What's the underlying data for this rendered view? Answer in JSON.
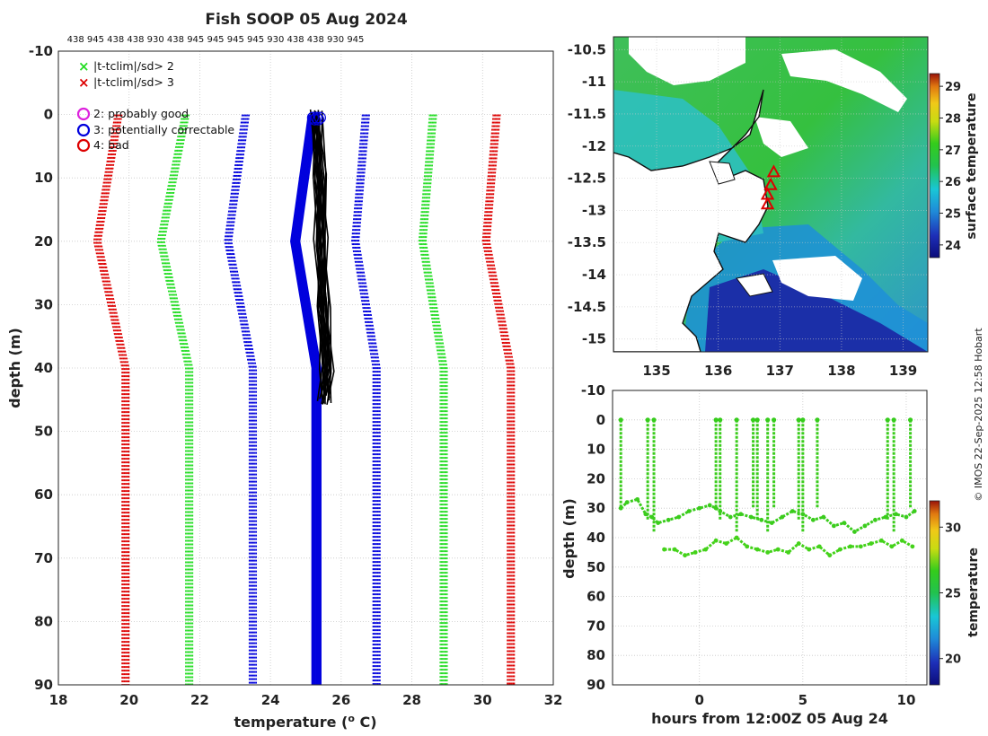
{
  "figure": {
    "title": "Fish SOOP 05 Aug 2024",
    "probe_types": "438 945 438 438 930 438 945 945 945 945 930 438 438 930 945",
    "credit": "© IMOS 22-Sep-2025 12:58 Hobart"
  },
  "legend": {
    "items": [
      {
        "symbol": "×",
        "color": "#22dd22",
        "label": "|t-tclim|/sd> 2"
      },
      {
        "symbol": "×",
        "color": "#dd0000",
        "label": "|t-tclim|/sd> 3"
      },
      {
        "symbol": "○",
        "color": "#dd22dd",
        "label": "2: probably good"
      },
      {
        "symbol": "○",
        "color": "#0000dd",
        "label": "3: potentially correctable"
      },
      {
        "symbol": "○",
        "color": "#dd0000",
        "label": "4: bad"
      }
    ]
  },
  "chart_data": [
    {
      "type": "line",
      "name": "temperature-profiles",
      "title": "Fish SOOP 05 Aug 2024",
      "xlabel": "temperature (°C)",
      "ylabel": "depth (m)",
      "xlim": [
        18,
        32
      ],
      "ylim": [
        90,
        -10
      ],
      "xticks": [
        "18",
        "20",
        "22",
        "24",
        "26",
        "28",
        "30",
        "32"
      ],
      "yticks": [
        "-10",
        "0",
        "10",
        "20",
        "30",
        "40",
        "50",
        "60",
        "70",
        "80",
        "90"
      ],
      "climatology_depths": [
        0,
        20,
        40,
        80,
        90
      ],
      "climatology_series": [
        {
          "name": "clim-minus-3sd",
          "color": "#dd0000",
          "values": [
            19.7,
            19.1,
            19.9,
            19.9,
            19.9
          ]
        },
        {
          "name": "clim-minus-2sd",
          "color": "#22dd22",
          "values": [
            21.6,
            20.9,
            21.7,
            21.7,
            21.7
          ]
        },
        {
          "name": "clim-minus-1sd",
          "color": "#0000dd",
          "values": [
            23.3,
            22.8,
            23.5,
            23.5,
            23.5
          ]
        },
        {
          "name": "clim-plus-1sd",
          "color": "#0000dd",
          "values": [
            26.7,
            26.4,
            27.0,
            27.0,
            27.0
          ]
        },
        {
          "name": "clim-plus-2sd",
          "color": "#22dd22",
          "values": [
            28.6,
            28.3,
            28.9,
            28.9,
            28.9
          ]
        },
        {
          "name": "clim-plus-3sd",
          "color": "#dd0000",
          "values": [
            30.4,
            30.1,
            30.8,
            30.8,
            30.8
          ]
        }
      ],
      "blue_profile": {
        "name": "flag-3-profile",
        "depths": [
          0,
          20,
          40,
          80,
          90
        ],
        "values": [
          25.2,
          24.7,
          25.3,
          25.3,
          25.3
        ]
      },
      "black_profile": {
        "name": "observed-profiles",
        "depths": [
          0,
          10,
          20,
          30,
          40,
          45
        ],
        "values": [
          25.3,
          25.4,
          25.45,
          25.5,
          25.6,
          25.55
        ]
      }
    },
    {
      "type": "heatmap",
      "name": "sst-map",
      "xlim": [
        134.3,
        139.4
      ],
      "ylim": [
        -15.2,
        -10.3
      ],
      "xticks": [
        "135",
        "136",
        "137",
        "138",
        "139"
      ],
      "yticks": [
        "-10.5",
        "-11",
        "-11.5",
        "-12",
        "-12.5",
        "-13",
        "-13.5",
        "-14",
        "-14.5",
        "-15"
      ],
      "colorbar": {
        "label": "surface temperature",
        "range": [
          23.6,
          29.4
        ],
        "ticks": [
          "24",
          "25",
          "26",
          "27",
          "28",
          "29"
        ]
      },
      "track_points": [
        [
          136.9,
          -12.4
        ],
        [
          136.85,
          -12.6
        ],
        [
          136.8,
          -12.75
        ],
        [
          136.8,
          -12.9
        ]
      ]
    },
    {
      "type": "scatter",
      "name": "depth-time",
      "xlabel": "hours from 12:00Z 05 Aug 24",
      "ylabel": "depth (m)",
      "xlim": [
        -4.2,
        11
      ],
      "ylim": [
        90,
        -10
      ],
      "xticks": [
        "0",
        "5",
        "10"
      ],
      "yticks": [
        "-10",
        "0",
        "10",
        "20",
        "30",
        "40",
        "50",
        "60",
        "70",
        "80",
        "90"
      ],
      "colorbar": {
        "label": "temperature",
        "range": [
          18,
          32
        ],
        "ticks": [
          "20",
          "25",
          "30"
        ]
      },
      "series": [
        {
          "name": "tow-upper",
          "x": [
            -3.8,
            -3.5,
            -3,
            -2.6,
            -2.3,
            -2,
            -1.5,
            -1,
            -0.5,
            0,
            0.5,
            0.8,
            1,
            1.5,
            2,
            2.5,
            3,
            3.5,
            4,
            4.5,
            5,
            5.5,
            6,
            6.5,
            7,
            7.5,
            8,
            8.5,
            9,
            9.5,
            10,
            10.4
          ],
          "y": [
            30,
            28,
            27,
            32,
            33,
            35,
            34,
            33,
            31,
            30,
            29,
            30,
            31,
            33,
            32,
            33,
            34,
            35,
            33,
            31,
            32,
            34,
            33,
            36,
            35,
            38,
            36,
            34,
            33,
            32,
            33,
            31
          ]
        },
        {
          "name": "tow-lower",
          "x": [
            -1.7,
            -1.2,
            -0.7,
            -0.2,
            0.3,
            0.8,
            1.3,
            1.8,
            2.3,
            2.8,
            3.3,
            3.8,
            4.3,
            4.8,
            5.3,
            5.8,
            6.3,
            6.8,
            7.3,
            7.8,
            8.3,
            8.8,
            9.3,
            9.8,
            10.3
          ],
          "y": [
            44,
            44,
            46,
            45,
            44,
            41,
            42,
            40,
            43,
            44,
            45,
            44,
            45,
            42,
            44,
            43,
            46,
            44,
            43,
            43,
            42,
            41,
            43,
            41,
            43
          ]
        },
        {
          "name": "surface-spikes",
          "x": [
            -3.8,
            -2.5,
            -2.2,
            0.8,
            1.0,
            1.8,
            2.6,
            2.8,
            3.3,
            3.6,
            4.8,
            5.0,
            5.7,
            9.1,
            9.4,
            10.2
          ],
          "y": [
            0,
            0,
            0,
            0,
            0,
            0,
            0,
            0,
            0,
            0,
            0,
            0,
            0,
            0,
            0,
            0
          ]
        }
      ]
    }
  ]
}
